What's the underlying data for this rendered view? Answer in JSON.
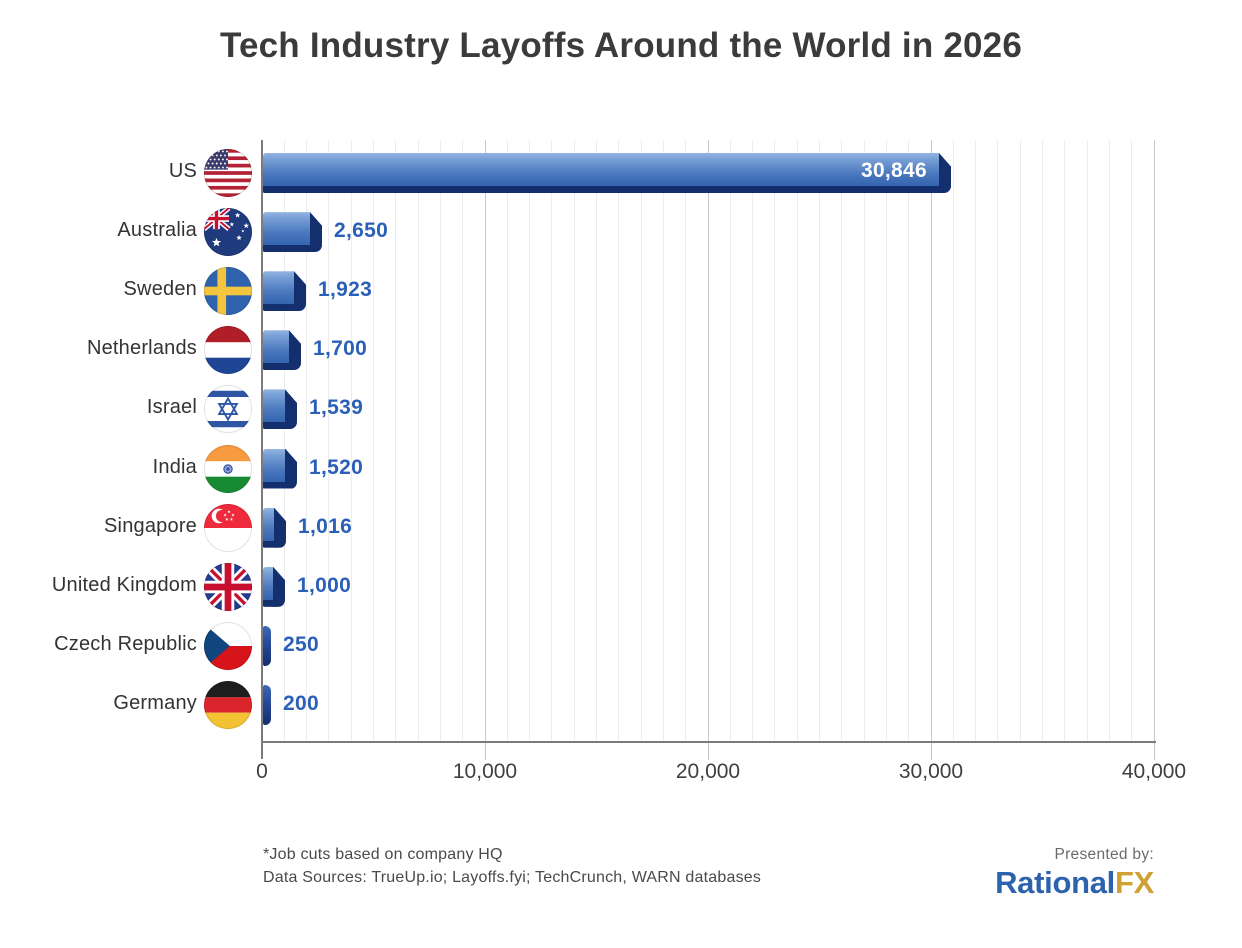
{
  "title": "Tech Industry Layoffs Around the World in 2026",
  "chart_data": {
    "type": "bar",
    "orientation": "horizontal",
    "title": "Tech Industry Layoffs Around the World in 2026",
    "categories": [
      "US",
      "Australia",
      "Sweden",
      "Netherlands",
      "Israel",
      "India",
      "Singapore",
      "United Kingdom",
      "Czech Republic",
      "Germany"
    ],
    "values": [
      30846,
      2650,
      1923,
      1700,
      1539,
      1520,
      1016,
      1000,
      250,
      200
    ],
    "value_labels": [
      "30,846",
      "2,650",
      "1,923",
      "1,700",
      "1,539",
      "1,520",
      "1,016",
      "1,000",
      "250",
      "200"
    ],
    "flags": [
      "us",
      "australia",
      "sweden",
      "netherlands",
      "israel",
      "india",
      "singapore",
      "united-kingdom",
      "czech-republic",
      "germany"
    ],
    "xlim": [
      0,
      40000
    ],
    "x_ticks": [
      {
        "value": 0,
        "label": "0"
      },
      {
        "value": 10000,
        "label": "10,000"
      },
      {
        "value": 20000,
        "label": "20,000"
      },
      {
        "value": 30000,
        "label": "30,000"
      },
      {
        "value": 40000,
        "label": "40,000"
      }
    ],
    "minor_grid_step": 1000,
    "grid": true,
    "legend": "none"
  },
  "colors": {
    "bar_body_top": "#96b5e1",
    "bar_body_mid": "#3767b1",
    "bar_dark_edge": "#142f6e",
    "value_label_blue": "#2b60b8",
    "value_label_inside": "#ffffff",
    "grid_minor": "#ededed",
    "grid_major": "#c9c9c9",
    "axis": "#7b7b7b",
    "title_text": "#3b3b3b",
    "brand_blue": "#2d63ac",
    "brand_gold": "#cda233"
  },
  "footer": {
    "note_line1": "*Job cuts based on company HQ",
    "note_line2": "Data Sources: TrueUp.io; Layoffs.fyi; TechCrunch, WARN databases",
    "presented_by": "Presented by:",
    "brand_part1": "Rational",
    "brand_part2": "FX"
  }
}
